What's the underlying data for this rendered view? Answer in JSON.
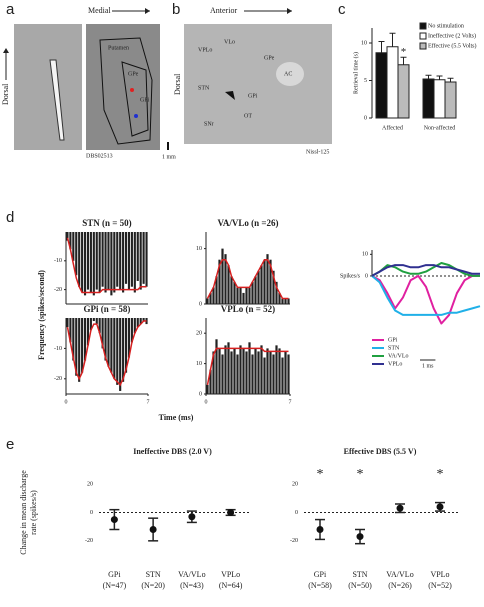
{
  "panel_labels": [
    "a",
    "b",
    "c",
    "d",
    "e"
  ],
  "panel_a": {
    "medial": "Medial",
    "dorsal": "Dorsal",
    "putamen": "Putamen",
    "gpe": "GPe",
    "gpi": "GPi",
    "code": "DBS02513"
  },
  "panel_b": {
    "anterior": "Anterior",
    "dorsal": "Dorsal",
    "vplo": "VPLo",
    "vlo": "VLo",
    "gpe": "GPe",
    "ac": "AC",
    "stn": "STN",
    "gpi": "GPi",
    "snr": "SNr",
    "ot": "OT",
    "code": "Nissl-125",
    "scale": "1 mm"
  },
  "panel_d": {
    "ylabel": "Frequency (spikes/second)",
    "xlabel": "Time (ms)"
  },
  "chart_data": [
    {
      "type": "bar",
      "ylabel": "Retrieval time (s)",
      "categories": [
        "Affected",
        "Non-affected"
      ],
      "ylim": [
        0,
        12
      ],
      "yticks": [
        0,
        5,
        10
      ],
      "marker": "*",
      "series": [
        {
          "name": "No stimulation",
          "color": "#111111",
          "values": [
            8.7,
            5.2
          ],
          "errors": [
            1.5,
            0.5
          ],
          "marked": [
            false,
            false
          ]
        },
        {
          "name": "Ineffective (2 Volts)",
          "color": "#ffffff",
          "values": [
            9.5,
            5.1
          ],
          "errors": [
            1.8,
            0.5
          ],
          "marked": [
            false,
            false
          ]
        },
        {
          "name": "Effective (5.5 Volts)",
          "color": "#bbbbbb",
          "values": [
            7.1,
            4.8
          ],
          "errors": [
            1.0,
            0.5
          ],
          "marked": [
            true,
            false
          ]
        }
      ]
    },
    {
      "type": "histogram",
      "title": "STN (n = 50)",
      "color": "#222222",
      "fit_color": "#d62020",
      "xlim": [
        0,
        7
      ],
      "ylim": [
        -25,
        0
      ],
      "yticks": [
        -10,
        -20
      ],
      "bins": [
        0,
        0.25,
        0.5,
        0.75,
        1,
        1.25,
        1.5,
        1.75,
        2,
        2.25,
        2.5,
        2.75,
        3,
        3.25,
        3.5,
        3.75,
        4,
        4.25,
        4.5,
        4.75,
        5,
        5.25,
        5.5,
        5.75,
        6,
        6.25,
        6.5,
        6.75,
        7
      ],
      "values": [
        -3,
        -6,
        -10,
        -15,
        -19,
        -21,
        -22,
        -20,
        -21,
        -22,
        -20,
        -21,
        -19,
        -21,
        -20,
        -22,
        -21,
        -19,
        -20,
        -21,
        -18,
        -20,
        -19,
        -21,
        -17,
        -20,
        -18,
        -19
      ],
      "fit_values": [
        -2,
        -6,
        -11,
        -16,
        -19,
        -21,
        -21,
        -21,
        -21,
        -21,
        -21,
        -21,
        -20,
        -20,
        -20,
        -20,
        -20,
        -20,
        -20,
        -20,
        -20,
        -20,
        -20,
        -20,
        -20,
        -19,
        -19,
        -19
      ]
    },
    {
      "type": "histogram",
      "title": "VA/VLo (n =26)",
      "color": "#222222",
      "fit_color": "#d62020",
      "xlim": [
        0,
        7
      ],
      "ylim": [
        0,
        13
      ],
      "yticks": [
        0,
        10
      ],
      "bins": [
        0,
        0.25,
        0.5,
        0.75,
        1,
        1.25,
        1.5,
        1.75,
        2,
        2.25,
        2.5,
        2.75,
        3,
        3.25,
        3.5,
        3.75,
        4,
        4.25,
        4.5,
        4.75,
        5,
        5.25,
        5.5,
        5.75,
        6,
        6.25,
        6.5,
        6.75,
        7
      ],
      "values": [
        1,
        2,
        3,
        5,
        8,
        10,
        9,
        7,
        5,
        4,
        3,
        3,
        2,
        3,
        3,
        4,
        5,
        6,
        7,
        8,
        9,
        8,
        6,
        4,
        2,
        1,
        1,
        1
      ],
      "fit_values": [
        1,
        2,
        3,
        5,
        7,
        8,
        8,
        7,
        5,
        4,
        3,
        3,
        3,
        3,
        3,
        4,
        5,
        6,
        7,
        8,
        8,
        7,
        5,
        3,
        2,
        1,
        1,
        1
      ]
    },
    {
      "type": "histogram",
      "title": "GPi (n = 58)",
      "color": "#222222",
      "fit_color": "#d62020",
      "xlim": [
        0,
        7
      ],
      "ylim": [
        -25,
        0
      ],
      "yticks": [
        -10,
        -20
      ],
      "xticks": [
        0,
        7
      ],
      "bins": [
        0,
        0.25,
        0.5,
        0.75,
        1,
        1.25,
        1.5,
        1.75,
        2,
        2.25,
        2.5,
        2.75,
        3,
        3.25,
        3.5,
        3.75,
        4,
        4.25,
        4.5,
        4.75,
        5,
        5.25,
        5.5,
        5.75,
        6,
        6.25,
        6.5,
        6.75,
        7
      ],
      "values": [
        -3,
        -8,
        -14,
        -19,
        -21,
        -18,
        -14,
        -9,
        -4,
        -1,
        -2,
        -5,
        -10,
        -14,
        -16,
        -18,
        -20,
        -22,
        -24,
        -21,
        -18,
        -13,
        -8,
        -5,
        -3,
        -2,
        -1,
        -2
      ],
      "fit_values": [
        -3,
        -8,
        -13,
        -18,
        -20,
        -18,
        -14,
        -9,
        -4,
        -2,
        -2,
        -5,
        -9,
        -13,
        -16,
        -18,
        -20,
        -21,
        -22,
        -20,
        -17,
        -13,
        -8,
        -5,
        -3,
        -2,
        -1,
        -1
      ]
    },
    {
      "type": "histogram",
      "title": "VPLo (n = 52)",
      "color": "#222222",
      "fit_color": "#d62020",
      "xlim": [
        0,
        7
      ],
      "ylim": [
        0,
        25
      ],
      "yticks": [
        0,
        10,
        20
      ],
      "xticks": [
        0,
        7
      ],
      "bins": [
        0,
        0.25,
        0.5,
        0.75,
        1,
        1.25,
        1.5,
        1.75,
        2,
        2.25,
        2.5,
        2.75,
        3,
        3.25,
        3.5,
        3.75,
        4,
        4.25,
        4.5,
        4.75,
        5,
        5.25,
        5.5,
        5.75,
        6,
        6.25,
        6.5,
        6.75,
        7
      ],
      "values": [
        3,
        8,
        14,
        18,
        15,
        13,
        16,
        17,
        14,
        15,
        13,
        16,
        15,
        14,
        17,
        13,
        15,
        14,
        16,
        12,
        15,
        14,
        13,
        16,
        15,
        12,
        14,
        13
      ],
      "fit_values": [
        3,
        8,
        13,
        15,
        15,
        15,
        15,
        15,
        15,
        15,
        15,
        15,
        15,
        15,
        15,
        15,
        15,
        15,
        15,
        14,
        14,
        14,
        14,
        14,
        14,
        14,
        14,
        14
      ]
    },
    {
      "type": "line",
      "ylabel": "Spikes/s",
      "xlim": [
        0,
        7
      ],
      "ylim": [
        -25,
        12
      ],
      "yticks": [
        0,
        10
      ],
      "scale_bar": {
        "value": 1,
        "label": "1 ms"
      },
      "x": [
        0,
        0.5,
        1,
        1.5,
        2,
        2.5,
        3,
        3.5,
        4,
        4.5,
        5,
        5.5,
        6,
        6.5,
        7
      ],
      "series": [
        {
          "name": "GPi",
          "color": "#e020a0",
          "values": [
            0,
            -2,
            -8,
            -15,
            -10,
            -2,
            0,
            -5,
            -15,
            -22,
            -18,
            -8,
            -2,
            0,
            0
          ]
        },
        {
          "name": "STN",
          "color": "#20b0e8",
          "values": [
            0,
            -3,
            -10,
            -16,
            -18,
            -18,
            -18,
            -18,
            -18,
            -18,
            -17,
            -17,
            -16,
            -15,
            -14
          ]
        },
        {
          "name": "VA/VLo",
          "color": "#20a040",
          "values": [
            0,
            2,
            5,
            4,
            2,
            1,
            1,
            2,
            4,
            6,
            5,
            3,
            1,
            0,
            0
          ]
        },
        {
          "name": "VPLo",
          "color": "#303090",
          "values": [
            0,
            2,
            4,
            5,
            5,
            4,
            4,
            5,
            5,
            4,
            4,
            3,
            2,
            1,
            1
          ]
        }
      ]
    },
    {
      "type": "errorbar",
      "title": "Ineffective DBS (2.0 V)",
      "ylabel": [
        "Change in mean discharge",
        "rate (spikes/s)"
      ],
      "ylim": [
        -30,
        30
      ],
      "yticks": [
        20,
        0,
        -20
      ],
      "marker": "*",
      "categories": [
        "GPi",
        "STN",
        "VA/VLo",
        "VPLo"
      ],
      "n_labels": [
        "(N=47)",
        "(N=20)",
        "(N=43)",
        "(N=64)"
      ],
      "values": [
        -5,
        -12,
        -3,
        0
      ],
      "errors": [
        7,
        8,
        4,
        2
      ],
      "marked": [
        false,
        false,
        false,
        false
      ]
    },
    {
      "type": "errorbar",
      "title": "Effective DBS (5.5 V)",
      "ylim": [
        -30,
        30
      ],
      "yticks": [
        20,
        0,
        -20
      ],
      "marker": "*",
      "categories": [
        "GPi",
        "STN",
        "VA/VLo",
        "VPLo"
      ],
      "n_labels": [
        "(N=58)",
        "(N=50)",
        "(N=26)",
        "(N=52)"
      ],
      "values": [
        -12,
        -17,
        3,
        4
      ],
      "errors": [
        7,
        5,
        3,
        3
      ],
      "marked": [
        true,
        true,
        false,
        true
      ]
    }
  ]
}
